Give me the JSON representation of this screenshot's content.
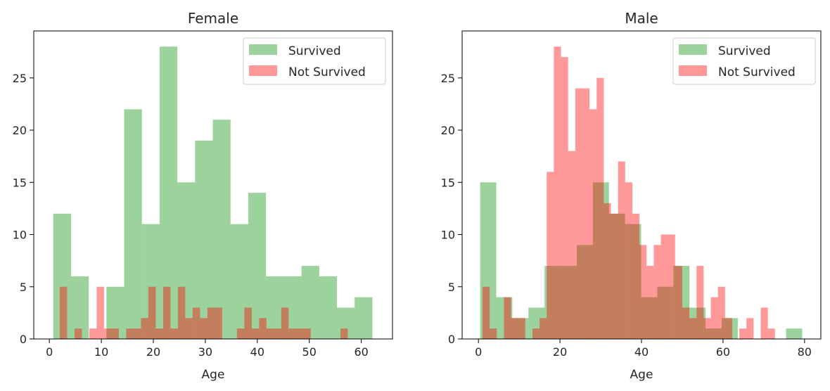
{
  "chart_data": [
    {
      "type": "bar",
      "title": "Female",
      "xlabel": "Age",
      "ylabel": "",
      "xlim": [
        -3,
        66
      ],
      "ylim": [
        0,
        29.5
      ],
      "xticks": [
        0,
        10,
        20,
        30,
        40,
        50,
        60
      ],
      "yticks": [
        0,
        5,
        10,
        15,
        20,
        25
      ],
      "legend_position": "top-right",
      "series": [
        {
          "name": "Survived",
          "color": "#2ca02c",
          "opacity": 0.47,
          "bin_edges": [
            0.75,
            4.16,
            7.57,
            10.98,
            14.39,
            17.8,
            21.21,
            24.62,
            28.03,
            31.44,
            34.85,
            38.26,
            41.67,
            45.08,
            48.49,
            51.9,
            55.31,
            58.72,
            62.13
          ],
          "counts": [
            12,
            6,
            0,
            5,
            22,
            11,
            28,
            15,
            19,
            21,
            11,
            14,
            6,
            6,
            7,
            6,
            3,
            4
          ]
        },
        {
          "name": "Not Survived",
          "color": "#ff0000",
          "opacity": 0.4,
          "bin_edges": [
            2.0,
            3.42,
            4.84,
            6.26,
            7.68,
            9.1,
            10.52,
            11.94,
            13.36,
            14.78,
            16.2,
            17.62,
            19.04,
            20.46,
            21.88,
            23.3,
            24.72,
            26.14,
            27.56,
            28.98,
            30.4,
            31.82,
            33.24,
            34.66,
            36.08,
            37.5,
            38.92,
            40.34,
            41.76,
            43.18,
            44.6,
            46.02,
            47.44,
            48.86,
            50.28
          ],
          "counts": [
            5,
            0,
            1,
            0,
            1,
            5,
            1,
            1,
            0,
            1,
            1,
            2,
            5,
            1,
            5,
            1,
            5,
            2,
            3,
            2,
            3,
            3,
            0,
            0,
            1,
            3,
            1,
            2,
            1,
            1,
            3,
            1,
            1,
            1
          ],
          "extra_bins": [
            {
              "x0": 56.0,
              "x1": 57.4,
              "count": 1
            }
          ]
        }
      ]
    },
    {
      "type": "bar",
      "title": "Male",
      "xlabel": "Age",
      "ylabel": "",
      "xlim": [
        -4,
        84
      ],
      "ylim": [
        0,
        29.5
      ],
      "xticks": [
        0,
        20,
        40,
        60,
        80
      ],
      "yticks": [
        0,
        5,
        10,
        15,
        20,
        25
      ],
      "legend_position": "top-right",
      "series": [
        {
          "name": "Survived",
          "color": "#2ca02c",
          "opacity": 0.47,
          "bin_edges": [
            0.42,
            4.37,
            8.32,
            12.27,
            16.22,
            20.17,
            24.12,
            28.07,
            32.02,
            35.97,
            39.92,
            43.87,
            47.82,
            51.77,
            55.72,
            59.67,
            63.62,
            67.57,
            71.52,
            75.47,
            79.42
          ],
          "counts": [
            15,
            4,
            2,
            3,
            7,
            7,
            9,
            15,
            12,
            11,
            4,
            5,
            7,
            3,
            1,
            2,
            0,
            0,
            0,
            1
          ]
        },
        {
          "name": "Not Survived",
          "color": "#ff0000",
          "opacity": 0.4,
          "bin_edges": [
            1.0,
            2.75,
            4.5,
            6.25,
            8.0,
            9.75,
            11.5,
            13.25,
            15.0,
            16.75,
            18.5,
            20.25,
            22.0,
            23.75,
            25.5,
            27.25,
            29.0,
            30.75,
            32.5,
            34.25,
            36.0,
            37.75,
            39.5,
            41.25,
            43.0,
            44.75,
            46.5,
            48.25,
            50.0,
            51.75,
            53.5,
            55.25,
            57.0,
            58.75,
            60.5,
            62.25,
            64.0,
            65.75,
            67.5,
            69.25,
            71.0,
            72.75
          ],
          "counts": [
            5,
            1,
            0,
            4,
            2,
            2,
            0,
            1,
            2,
            16,
            28,
            27,
            18,
            24,
            24,
            22,
            25,
            13,
            12,
            17,
            15,
            12,
            9,
            7,
            9,
            10,
            10,
            7,
            3,
            2,
            7,
            2,
            4,
            5,
            2,
            0,
            1,
            2,
            0,
            3,
            1
          ]
        }
      ]
    }
  ]
}
